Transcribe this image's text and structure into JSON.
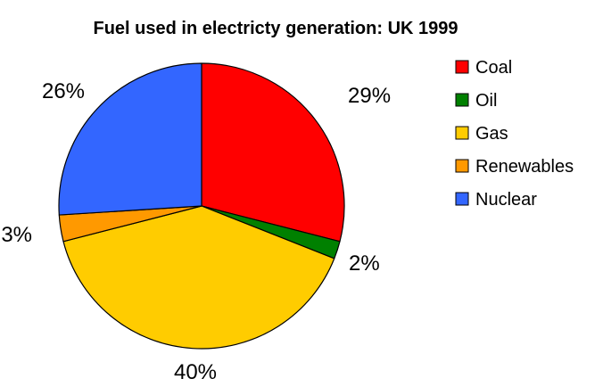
{
  "chart_data": {
    "type": "pie",
    "title": "Fuel used in electricty generation: UK 1999",
    "slices": [
      {
        "label": "Coal",
        "value": 29,
        "display": "29%",
        "color": "#ff0000"
      },
      {
        "label": "Oil",
        "value": 2,
        "display": "2%",
        "color": "#008000"
      },
      {
        "label": "Gas",
        "value": 40,
        "display": "40%",
        "color": "#ffcc00"
      },
      {
        "label": "Renewables",
        "value": 3,
        "display": "3%",
        "color": "#ff9900"
      },
      {
        "label": "Nuclear",
        "value": 26,
        "display": "26%",
        "color": "#3366ff"
      }
    ],
    "legend_position": "right",
    "start": "12 o'clock",
    "direction": "clockwise"
  }
}
